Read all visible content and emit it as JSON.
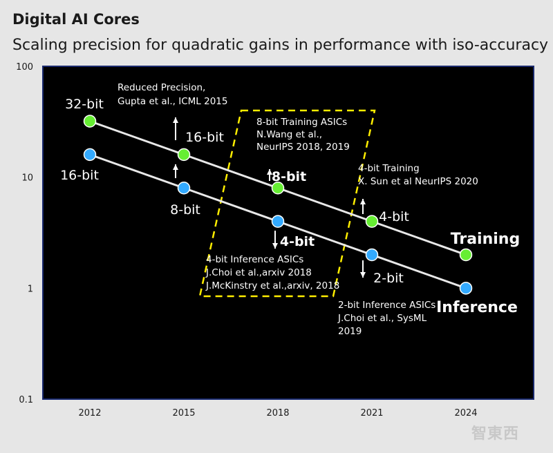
{
  "title": "Digital AI Cores",
  "subtitle": "Scaling precision for quadratic gains in performance with iso-accuracy",
  "watermark": "智東西",
  "chart_data": {
    "type": "line",
    "yscale": "log",
    "ylim": [
      0.1,
      100
    ],
    "ytick_labels": [
      "100",
      "10",
      "1",
      "0.1"
    ],
    "yticks": [
      100,
      10,
      1,
      0.1
    ],
    "categories": [
      "2012",
      "2015",
      "2018",
      "2021",
      "2024"
    ],
    "series": [
      {
        "name": "Training",
        "color": "#66ee33",
        "values": [
          32,
          16,
          8,
          4,
          2
        ],
        "point_labels": [
          "32-bit",
          "16-bit",
          "8-bit",
          "4-bit",
          ""
        ]
      },
      {
        "name": "Inference",
        "color": "#33aaff",
        "values": [
          16,
          8,
          4,
          2,
          1
        ],
        "point_labels": [
          "16-bit",
          "8-bit",
          "4-bit",
          "2-bit",
          ""
        ]
      }
    ],
    "series_end_labels": [
      "Training",
      "Inference"
    ],
    "annotations": [
      {
        "id": "reduced",
        "lines": [
          "Reduced Precision,",
          "Gupta et al., ICML 2015"
        ]
      },
      {
        "id": "train8",
        "lines": [
          "8-bit Training ASICs",
          "N.Wang et al.,",
          "NeurIPS 2018, 2019"
        ]
      },
      {
        "id": "train4",
        "lines": [
          "4-bit Training",
          "X. Sun et al NeurIPS 2020"
        ]
      },
      {
        "id": "inf4",
        "lines": [
          "4-bit Inference ASICs",
          "J.Choi et al.,arxiv 2018",
          "J.McKinstry et al.,arxiv, 2018"
        ]
      },
      {
        "id": "inf2",
        "lines": [
          "2-bit Inference ASICs",
          "J.Choi et al., SysML",
          "2019"
        ]
      }
    ],
    "colors": {
      "plot_bg": "#000000",
      "line": "#e8e8e8",
      "border": "#1a2a6e",
      "highlight_box": "#ffee00",
      "text_light": "#ffffff",
      "text_dark": "#1a1a1a"
    }
  }
}
